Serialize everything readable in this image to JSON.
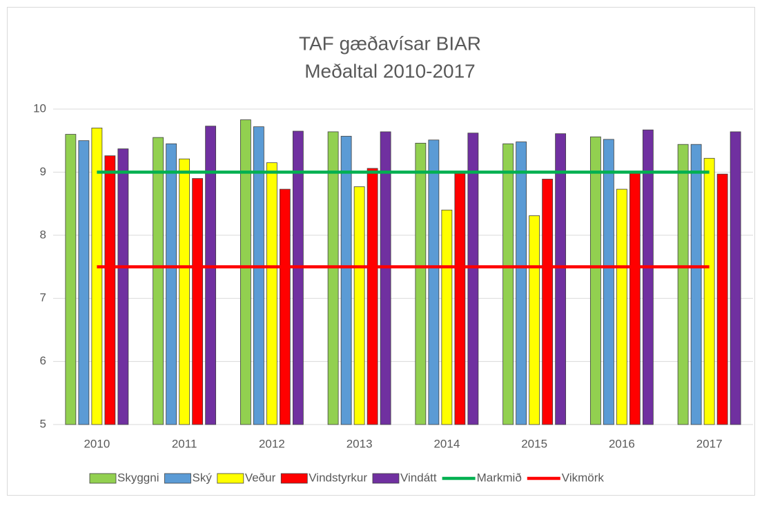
{
  "chart_data": {
    "type": "bar",
    "title": [
      "TAF gæðavísar BIAR",
      "Meðaltal 2010-2017"
    ],
    "categories": [
      "2010",
      "2011",
      "2012",
      "2013",
      "2014",
      "2015",
      "2016",
      "2017"
    ],
    "series": [
      {
        "name": "Skyggni",
        "color": "#92d050",
        "values": [
          9.6,
          9.55,
          9.83,
          9.64,
          9.46,
          9.45,
          9.56,
          9.44
        ]
      },
      {
        "name": "Ský",
        "color": "#5b9bd5",
        "values": [
          9.5,
          9.45,
          9.72,
          9.57,
          9.51,
          9.48,
          9.52,
          9.44
        ]
      },
      {
        "name": "Veður",
        "color": "#ffff00",
        "values": [
          9.7,
          9.21,
          9.15,
          8.77,
          8.4,
          8.31,
          8.73,
          9.22
        ]
      },
      {
        "name": "Vindstyrkur",
        "color": "#ff0000",
        "values": [
          9.26,
          8.9,
          8.73,
          9.06,
          9.0,
          8.89,
          8.99,
          8.97
        ]
      },
      {
        "name": "Vindátt",
        "color": "#7030a0",
        "values": [
          9.37,
          9.73,
          9.65,
          9.64,
          9.62,
          9.61,
          9.67,
          9.64
        ]
      },
      {
        "name": "Markmið",
        "type": "line",
        "color": "#00b050",
        "values": [
          9,
          9,
          9,
          9,
          9,
          9,
          9,
          9
        ]
      },
      {
        "name": "Vikmörk",
        "type": "line",
        "color": "#ff0000",
        "values": [
          7.5,
          7.5,
          7.5,
          7.5,
          7.5,
          7.5,
          7.5,
          7.5
        ]
      }
    ],
    "ylim": [
      5,
      10
    ],
    "yticks": [
      5,
      6,
      7,
      8,
      9,
      10
    ],
    "grid": true,
    "legend": "bottom"
  }
}
